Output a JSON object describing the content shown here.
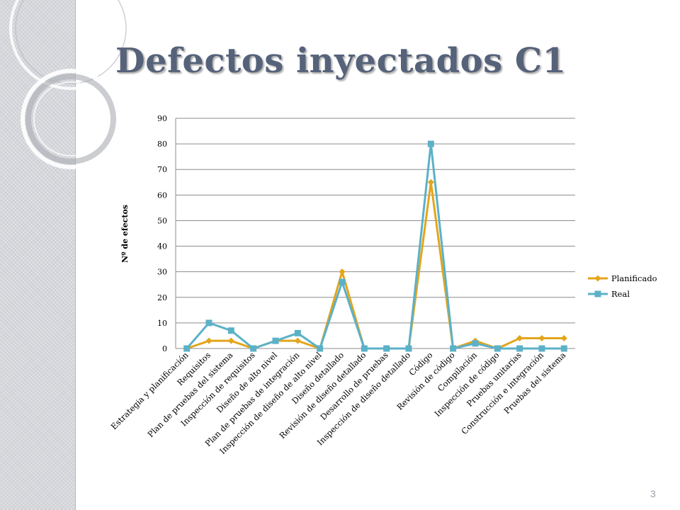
{
  "slide": {
    "title": "Defectos inyectados C1",
    "number": "3"
  },
  "colors": {
    "planificado": "#e3a51c",
    "real": "#5bb1c8",
    "grid": "#8c8c8c",
    "title": "#56627a"
  },
  "chart_data": {
    "type": "line",
    "title": "",
    "xlabel": "",
    "ylabel": "Nº de efectos",
    "ylim": [
      0,
      90
    ],
    "yticks": [
      0,
      10,
      20,
      30,
      40,
      50,
      60,
      70,
      80,
      90
    ],
    "grid": true,
    "legend": "right",
    "categories": [
      "Estrategia y planificación",
      "Requisitos",
      "Plan de pruebas del sistema",
      "Inspección de requisitos",
      "Diseño de alto nivel",
      "Plan de pruebas de integración",
      "Inspección de diseño de alto nivel",
      "Diseño detallado",
      "Revisión de diseño detallado",
      "Desarrollo de pruebas",
      "Inspección de diseño detallado",
      "Código",
      "Revisión de código",
      "Compilación",
      "Inspección de código",
      "Pruebas unitarias",
      "Construcción e integración",
      "Pruebas del sistema"
    ],
    "series": [
      {
        "name": "Planificado",
        "marker": "diamond",
        "values": [
          0,
          3,
          3,
          0,
          3,
          3,
          0,
          30,
          0,
          0,
          0,
          65,
          0,
          3,
          0,
          4,
          4,
          4
        ]
      },
      {
        "name": "Real",
        "marker": "square",
        "values": [
          0,
          10,
          7,
          0,
          3,
          6,
          0,
          26,
          0,
          0,
          0,
          80,
          0,
          2,
          0,
          0,
          0,
          0
        ]
      }
    ]
  }
}
